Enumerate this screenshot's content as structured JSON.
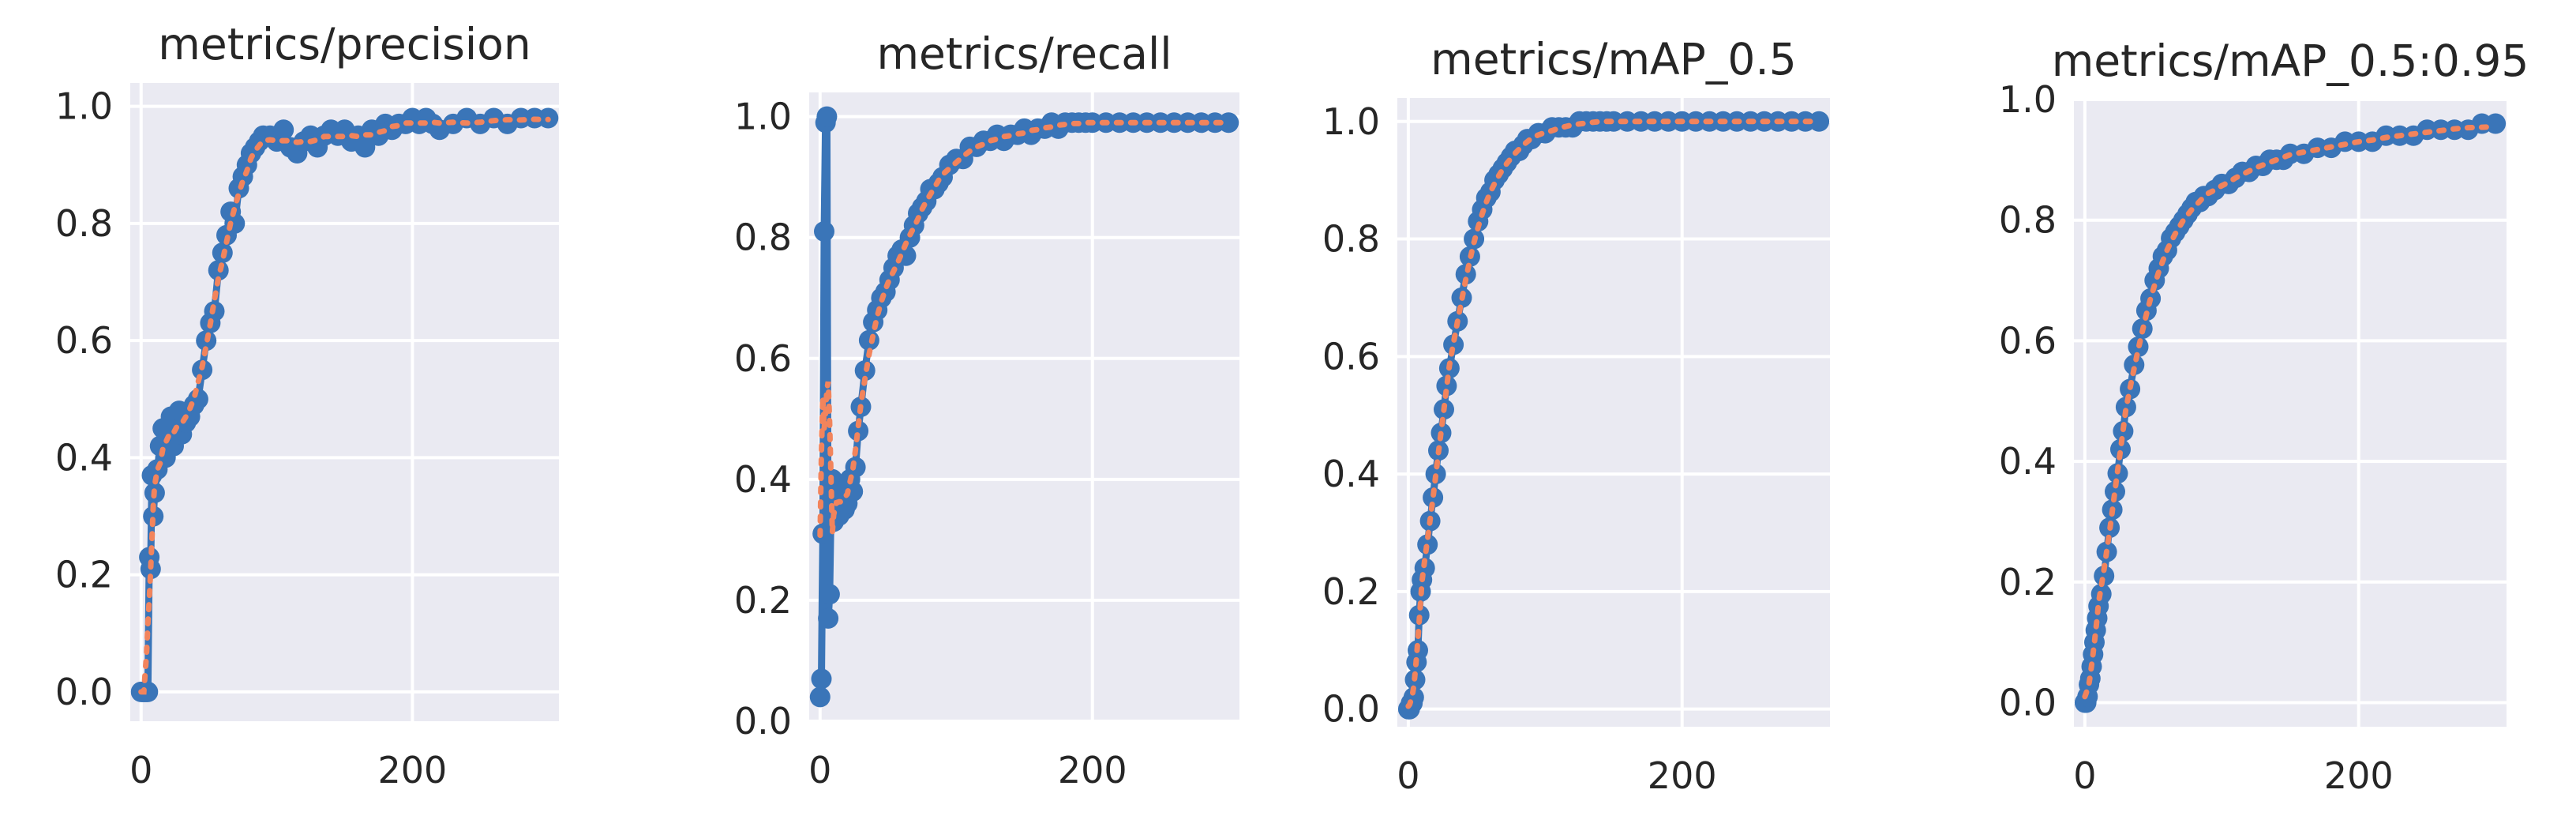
{
  "colors": {
    "results": "#3a75b8",
    "smooth": "#f2845c",
    "background": "#eaeaf2"
  },
  "chart_data": [
    {
      "type": "line",
      "title": "metrics/precision",
      "xlim": [
        -8,
        308
      ],
      "ylim": [
        -0.05,
        1.04
      ],
      "xticks": [
        0,
        200
      ],
      "yticks": [
        0.0,
        0.2,
        0.4,
        0.6,
        0.8,
        1.0
      ],
      "series": [
        {
          "x": [
            0,
            1,
            2,
            3,
            4,
            5,
            6,
            7,
            8,
            9,
            10,
            12,
            14,
            16,
            18,
            20,
            22,
            24,
            26,
            28,
            30,
            33,
            36,
            39,
            42,
            45,
            48,
            51,
            54,
            57,
            60,
            63,
            66,
            69,
            72,
            75,
            78,
            81,
            84,
            87,
            90,
            95,
            100,
            105,
            110,
            115,
            120,
            125,
            130,
            135,
            140,
            145,
            150,
            155,
            160,
            165,
            170,
            175,
            180,
            185,
            190,
            195,
            200,
            205,
            210,
            215,
            220,
            230,
            240,
            250,
            260,
            270,
            280,
            290,
            300
          ],
          "y": [
            0.0,
            0.0,
            0.0,
            0.0,
            0.0,
            0.0,
            0.23,
            0.21,
            0.37,
            0.3,
            0.34,
            0.38,
            0.42,
            0.45,
            0.4,
            0.44,
            0.47,
            0.42,
            0.45,
            0.48,
            0.44,
            0.46,
            0.47,
            0.49,
            0.5,
            0.55,
            0.6,
            0.63,
            0.65,
            0.72,
            0.75,
            0.78,
            0.82,
            0.8,
            0.86,
            0.88,
            0.9,
            0.92,
            0.93,
            0.94,
            0.95,
            0.95,
            0.94,
            0.96,
            0.93,
            0.92,
            0.94,
            0.95,
            0.93,
            0.95,
            0.96,
            0.95,
            0.96,
            0.94,
            0.95,
            0.93,
            0.96,
            0.95,
            0.97,
            0.96,
            0.97,
            0.97,
            0.98,
            0.97,
            0.98,
            0.97,
            0.96,
            0.97,
            0.98,
            0.97,
            0.98,
            0.97,
            0.98,
            0.98,
            0.98
          ]
        }
      ]
    },
    {
      "type": "line",
      "title": "metrics/recall",
      "xlim": [
        -8,
        308
      ],
      "ylim": [
        0.0,
        1.04
      ],
      "xticks": [
        0,
        200
      ],
      "yticks": [
        0.0,
        0.2,
        0.4,
        0.6,
        0.8,
        1.0
      ],
      "series": [
        {
          "x": [
            0,
            1,
            2,
            3,
            4,
            5,
            6,
            7,
            8,
            9,
            10,
            12,
            14,
            16,
            18,
            20,
            22,
            24,
            26,
            28,
            30,
            33,
            36,
            39,
            42,
            45,
            48,
            51,
            54,
            57,
            60,
            63,
            66,
            69,
            72,
            75,
            78,
            81,
            84,
            87,
            90,
            95,
            100,
            105,
            110,
            115,
            120,
            125,
            130,
            135,
            140,
            145,
            150,
            155,
            160,
            165,
            170,
            175,
            180,
            185,
            190,
            195,
            200,
            210,
            220,
            230,
            240,
            250,
            260,
            270,
            280,
            290,
            300
          ],
          "y": [
            0.04,
            0.07,
            0.31,
            0.81,
            0.99,
            1.0,
            0.17,
            0.21,
            0.35,
            0.4,
            0.33,
            0.38,
            0.34,
            0.38,
            0.35,
            0.36,
            0.4,
            0.38,
            0.42,
            0.48,
            0.52,
            0.58,
            0.63,
            0.66,
            0.68,
            0.7,
            0.71,
            0.73,
            0.75,
            0.77,
            0.78,
            0.77,
            0.8,
            0.82,
            0.84,
            0.85,
            0.86,
            0.88,
            0.88,
            0.89,
            0.9,
            0.92,
            0.93,
            0.93,
            0.95,
            0.95,
            0.96,
            0.96,
            0.97,
            0.96,
            0.97,
            0.97,
            0.98,
            0.97,
            0.98,
            0.98,
            0.99,
            0.98,
            0.99,
            0.99,
            0.99,
            0.99,
            0.99,
            0.99,
            0.99,
            0.99,
            0.99,
            0.99,
            0.99,
            0.99,
            0.99,
            0.99,
            0.99
          ]
        }
      ]
    },
    {
      "type": "line",
      "title": "metrics/mAP_0.5",
      "xlim": [
        -8,
        308
      ],
      "ylim": [
        -0.03,
        1.04
      ],
      "xticks": [
        0,
        200
      ],
      "yticks": [
        0.0,
        0.2,
        0.4,
        0.6,
        0.8,
        1.0
      ],
      "series": [
        {
          "x": [
            0,
            1,
            2,
            3,
            4,
            5,
            6,
            7,
            8,
            9,
            10,
            12,
            14,
            16,
            18,
            20,
            22,
            24,
            26,
            28,
            30,
            33,
            36,
            39,
            42,
            45,
            48,
            51,
            54,
            57,
            60,
            63,
            66,
            69,
            72,
            75,
            78,
            81,
            84,
            87,
            90,
            95,
            100,
            105,
            110,
            115,
            120,
            125,
            130,
            135,
            140,
            145,
            150,
            160,
            170,
            180,
            190,
            200,
            210,
            220,
            230,
            240,
            250,
            260,
            270,
            280,
            290,
            300
          ],
          "y": [
            0.0,
            0.0,
            0.01,
            0.01,
            0.02,
            0.05,
            0.08,
            0.1,
            0.16,
            0.2,
            0.22,
            0.24,
            0.28,
            0.32,
            0.36,
            0.4,
            0.44,
            0.47,
            0.51,
            0.55,
            0.58,
            0.62,
            0.66,
            0.7,
            0.74,
            0.77,
            0.8,
            0.83,
            0.85,
            0.87,
            0.88,
            0.9,
            0.91,
            0.92,
            0.93,
            0.94,
            0.95,
            0.95,
            0.96,
            0.97,
            0.97,
            0.98,
            0.98,
            0.99,
            0.99,
            0.99,
            0.99,
            1.0,
            1.0,
            1.0,
            1.0,
            1.0,
            1.0,
            1.0,
            1.0,
            1.0,
            1.0,
            1.0,
            1.0,
            1.0,
            1.0,
            1.0,
            1.0,
            1.0,
            1.0,
            1.0,
            1.0,
            1.0
          ]
        }
      ]
    },
    {
      "type": "line",
      "title": "metrics/mAP_0.5:0.95",
      "xlim": [
        -8,
        308
      ],
      "ylim": [
        -0.04,
        1.0
      ],
      "xticks": [
        0,
        200
      ],
      "yticks": [
        0.0,
        0.2,
        0.4,
        0.6,
        0.8,
        1.0
      ],
      "series": [
        {
          "x": [
            0,
            1,
            2,
            3,
            4,
            5,
            6,
            7,
            8,
            9,
            10,
            12,
            14,
            16,
            18,
            20,
            22,
            24,
            26,
            28,
            30,
            33,
            36,
            39,
            42,
            45,
            48,
            51,
            54,
            57,
            60,
            63,
            66,
            69,
            72,
            75,
            78,
            81,
            84,
            87,
            90,
            95,
            100,
            105,
            110,
            115,
            120,
            125,
            130,
            135,
            140,
            145,
            150,
            160,
            170,
            180,
            190,
            200,
            210,
            220,
            230,
            240,
            250,
            260,
            270,
            280,
            290,
            300
          ],
          "y": [
            0.0,
            0.0,
            0.01,
            0.03,
            0.04,
            0.06,
            0.08,
            0.1,
            0.12,
            0.14,
            0.16,
            0.18,
            0.21,
            0.25,
            0.29,
            0.32,
            0.35,
            0.38,
            0.42,
            0.45,
            0.49,
            0.52,
            0.56,
            0.59,
            0.62,
            0.65,
            0.67,
            0.7,
            0.72,
            0.74,
            0.75,
            0.77,
            0.78,
            0.79,
            0.8,
            0.81,
            0.82,
            0.83,
            0.83,
            0.84,
            0.84,
            0.85,
            0.86,
            0.86,
            0.87,
            0.88,
            0.88,
            0.89,
            0.89,
            0.9,
            0.9,
            0.9,
            0.91,
            0.91,
            0.92,
            0.92,
            0.93,
            0.93,
            0.93,
            0.94,
            0.94,
            0.94,
            0.95,
            0.95,
            0.95,
            0.95,
            0.96,
            0.96
          ]
        }
      ]
    }
  ]
}
